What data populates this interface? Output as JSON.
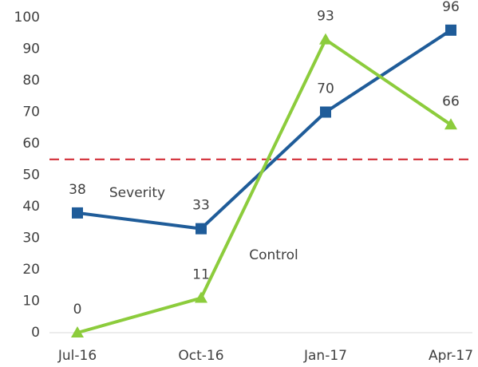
{
  "chart_data": {
    "type": "line",
    "categories": [
      "Jul-16",
      "Oct-16",
      "Jan-17",
      "Apr-17"
    ],
    "series": [
      {
        "name": "Severity",
        "color": "#1f5c99",
        "marker": "square",
        "values": [
          38,
          33,
          70,
          96
        ]
      },
      {
        "name": "Control",
        "color": "#8ccc3c",
        "marker": "triangle",
        "values": [
          0,
          11,
          93,
          66
        ]
      }
    ],
    "ylim": [
      0,
      100
    ],
    "yticks": [
      0,
      10,
      20,
      30,
      40,
      50,
      60,
      70,
      80,
      90,
      100
    ],
    "grid": false,
    "legend": false,
    "reference_line": {
      "value": 55,
      "color": "#d0202a",
      "style": "dashed"
    }
  }
}
